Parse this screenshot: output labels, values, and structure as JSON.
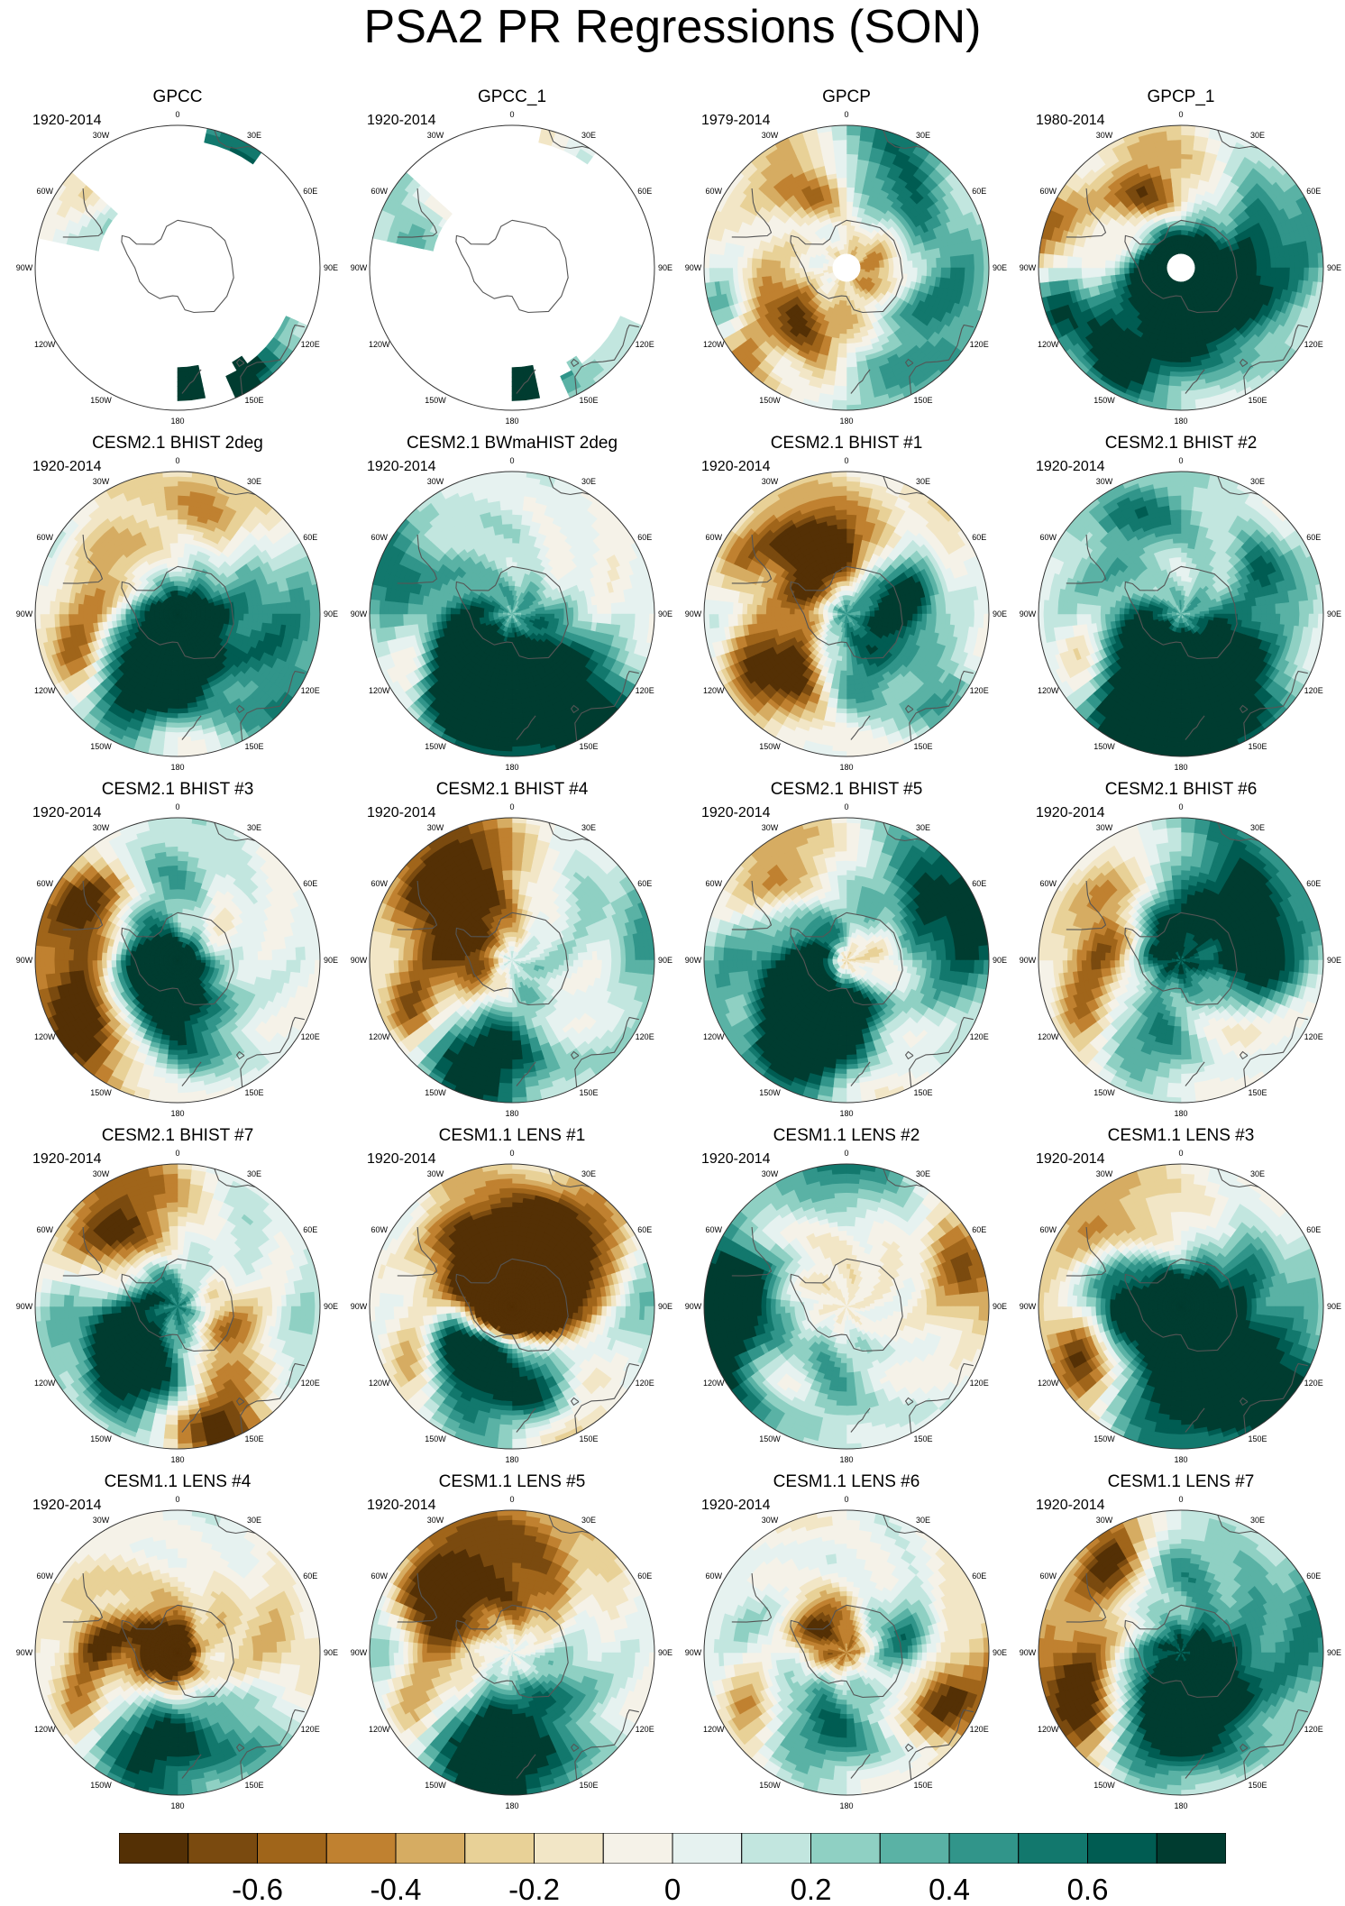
{
  "title": "PSA2 PR Regressions (SON)",
  "lon_labels": [
    "0",
    "30E",
    "60E",
    "90E",
    "120E",
    "150E",
    "180",
    "150W",
    "120W",
    "90W",
    "60W",
    "30W"
  ],
  "panels": [
    {
      "title": "GPCC",
      "period": "1920-2014",
      "field": "obs_land"
    },
    {
      "title": "GPCC_1",
      "period": "1920-2014",
      "field": "obs_land"
    },
    {
      "title": "GPCP",
      "period": "1979-2014",
      "field": "obs_full"
    },
    {
      "title": "GPCP_1",
      "period": "1980-2014",
      "field": "obs_full"
    },
    {
      "title": "CESM2.1 BHIST 2deg",
      "period": "1920-2014",
      "field": "model"
    },
    {
      "title": "CESM2.1 BWmaHIST 2deg",
      "period": "1920-2014",
      "field": "model"
    },
    {
      "title": "CESM2.1 BHIST #1",
      "period": "1920-2014",
      "field": "model"
    },
    {
      "title": "CESM2.1 BHIST #2",
      "period": "1920-2014",
      "field": "model"
    },
    {
      "title": "CESM2.1 BHIST #3",
      "period": "1920-2014",
      "field": "model"
    },
    {
      "title": "CESM2.1 BHIST #4",
      "period": "1920-2014",
      "field": "model"
    },
    {
      "title": "CESM2.1 BHIST #5",
      "period": "1920-2014",
      "field": "model"
    },
    {
      "title": "CESM2.1 BHIST #6",
      "period": "1920-2014",
      "field": "model"
    },
    {
      "title": "CESM2.1 BHIST #7",
      "period": "1920-2014",
      "field": "model"
    },
    {
      "title": "CESM1.1 LENS #1",
      "period": "1920-2014",
      "field": "model"
    },
    {
      "title": "CESM1.1 LENS #2",
      "period": "1920-2014",
      "field": "model"
    },
    {
      "title": "CESM1.1 LENS #3",
      "period": "1920-2014",
      "field": "model"
    },
    {
      "title": "CESM1.1 LENS #4",
      "period": "1920-2014",
      "field": "model"
    },
    {
      "title": "CESM1.1 LENS #5",
      "period": "1920-2014",
      "field": "model"
    },
    {
      "title": "CESM1.1 LENS #6",
      "period": "1920-2014",
      "field": "model"
    },
    {
      "title": "CESM1.1 LENS #7",
      "period": "1920-2014",
      "field": "model"
    }
  ],
  "colorbar": {
    "colors": [
      "#543005",
      "#7a4a0f",
      "#a0651a",
      "#c08130",
      "#d6ac62",
      "#e8d197",
      "#f2e6c6",
      "#f5f2e8",
      "#e6f2f0",
      "#c2e6df",
      "#8fd0c3",
      "#5ab2a5",
      "#31958a",
      "#12786d",
      "#005c52",
      "#003c30"
    ],
    "labels": [
      "-0.6",
      "-0.4",
      "-0.2",
      "0",
      "0.2",
      "0.4",
      "0.6"
    ],
    "label_values": [
      -0.6,
      -0.4,
      -0.2,
      0,
      0.2,
      0.4,
      0.6
    ],
    "min": -0.8,
    "max": 0.8
  }
}
